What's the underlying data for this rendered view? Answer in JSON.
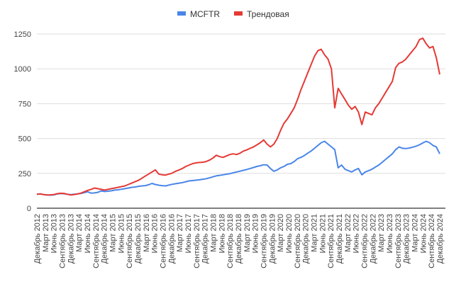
{
  "chart_data": {
    "type": "line",
    "legend_position": "top-center",
    "grid": true,
    "ylim": [
      0,
      1250
    ],
    "y_ticks": [
      0,
      250,
      500,
      750,
      1000,
      1250
    ],
    "x_tick_labels": [
      "Декабрь 2012",
      "Март 2013",
      "Июнь 2013",
      "Сентябрь 2013",
      "Декабрь 2013",
      "Март 2014",
      "Июнь 2014",
      "Сентябрь 2014",
      "Декабрь 2014",
      "Март 2015",
      "Июнь 2015",
      "Сентябрь 2015",
      "Декабрь 2015",
      "Март 2016",
      "Июнь 2016",
      "Сентябрь 2016",
      "Декабрь 2016",
      "Март 2017",
      "Июнь 2017",
      "Сентябрь 2017",
      "Декабрь 2017",
      "Март 2018",
      "Июнь 2018",
      "Сентябрь 2018",
      "Декабрь 2018",
      "Март 2019",
      "Июнь 2019",
      "Сентябрь 2019",
      "Декабрь 2019",
      "Март 2020",
      "Июнь 2020",
      "Сентябрь 2020",
      "Декабрь 2020",
      "Март 2021",
      "Июнь 2021",
      "Сентябрь 2021",
      "Декабрь 2021",
      "Март 2022",
      "Июнь 2022",
      "Сентябрь 2022",
      "Декабрь 2022",
      "Март 2023",
      "Июнь 2023",
      "Сентябрь 2023",
      "Декабрь 2023",
      "Март 2024",
      "Июнь 2024",
      "Сентябрь 2024",
      "Декабрь 2024"
    ],
    "series": [
      {
        "name": "MCFTR",
        "color": "#4a86e8",
        "values": [
          100,
          103,
          98,
          95,
          94,
          96,
          102,
          105,
          104,
          100,
          97,
          100,
          103,
          106,
          112,
          118,
          108,
          110,
          114,
          124,
          120,
          122,
          125,
          130,
          132,
          136,
          140,
          145,
          150,
          152,
          157,
          160,
          162,
          168,
          178,
          170,
          165,
          162,
          160,
          166,
          172,
          176,
          180,
          184,
          190,
          196,
          198,
          201,
          204,
          208,
          212,
          218,
          225,
          232,
          236,
          240,
          244,
          248,
          254,
          260,
          266,
          272,
          278,
          285,
          292,
          300,
          305,
          312,
          310,
          285,
          265,
          275,
          290,
          300,
          315,
          320,
          335,
          355,
          365,
          378,
          395,
          410,
          430,
          450,
          470,
          480,
          460,
          440,
          420,
          290,
          310,
          280,
          270,
          260,
          275,
          285,
          240,
          260,
          270,
          280,
          295,
          310,
          330,
          350,
          370,
          390,
          420,
          440,
          430,
          428,
          432,
          438,
          445,
          455,
          468,
          480,
          470,
          450,
          440,
          390
        ]
      },
      {
        "name": "Трендовая",
        "color": "#e53935",
        "values": [
          100,
          102,
          98,
          95,
          96,
          98,
          104,
          107,
          106,
          100,
          95,
          98,
          102,
          108,
          118,
          128,
          135,
          145,
          140,
          135,
          130,
          135,
          140,
          145,
          150,
          155,
          160,
          170,
          180,
          190,
          200,
          215,
          230,
          245,
          260,
          275,
          245,
          240,
          238,
          245,
          252,
          265,
          275,
          285,
          300,
          310,
          320,
          325,
          328,
          330,
          335,
          345,
          360,
          380,
          370,
          365,
          375,
          385,
          390,
          385,
          395,
          410,
          418,
          430,
          440,
          455,
          470,
          490,
          460,
          440,
          460,
          500,
          560,
          610,
          640,
          680,
          720,
          780,
          850,
          910,
          970,
          1030,
          1090,
          1130,
          1140,
          1100,
          1070,
          1000,
          720,
          860,
          820,
          780,
          740,
          710,
          730,
          690,
          600,
          690,
          680,
          670,
          720,
          750,
          790,
          830,
          870,
          910,
          1010,
          1040,
          1050,
          1070,
          1100,
          1130,
          1160,
          1210,
          1220,
          1180,
          1150,
          1160,
          1080,
          960
        ]
      }
    ]
  }
}
